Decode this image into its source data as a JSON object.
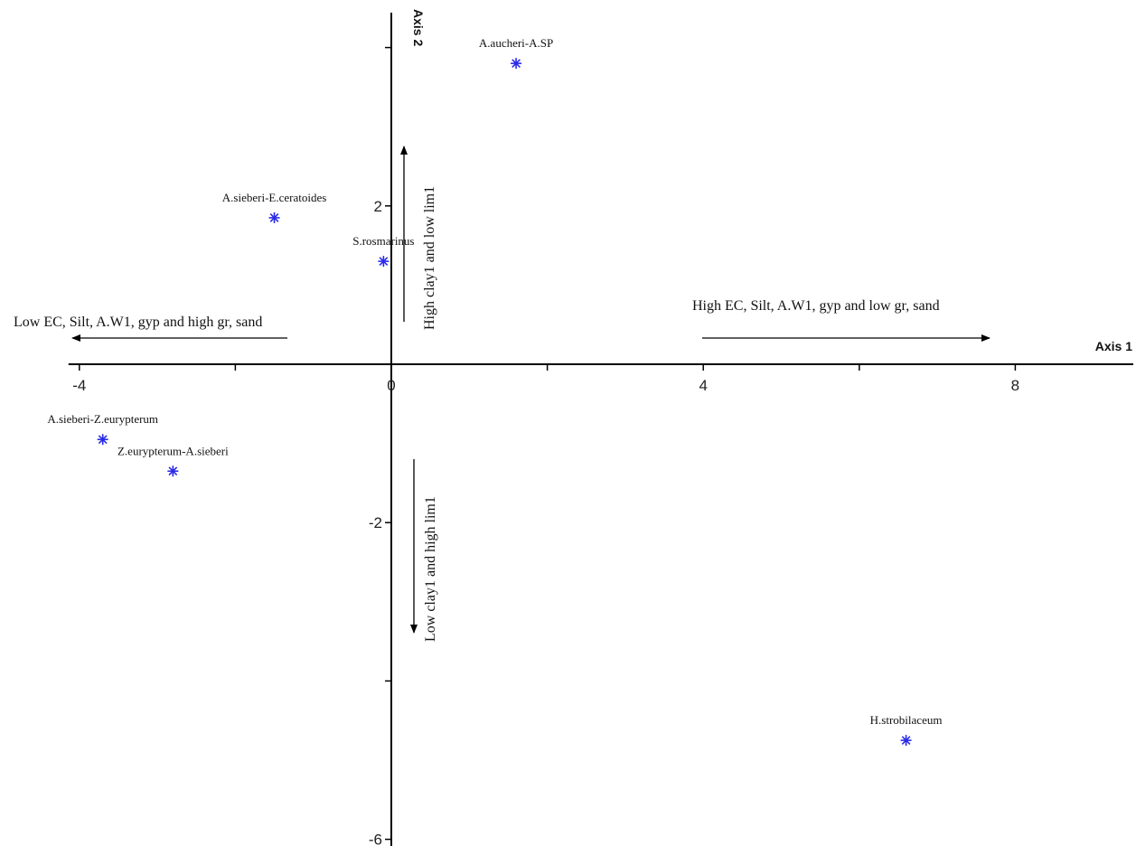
{
  "chart_data": {
    "type": "scatter",
    "title": "",
    "xlabel": "Axis 1",
    "ylabel": "Axis 2",
    "xlim": [
      -4,
      9.6
    ],
    "ylim": [
      -6,
      4.4
    ],
    "x_ticks": [
      -4,
      -2,
      0,
      2,
      4,
      6,
      8
    ],
    "x_tick_labels": [
      "-4",
      "",
      "0",
      "",
      "4",
      "",
      "8"
    ],
    "y_ticks": [
      -6,
      -4,
      -2,
      0,
      2,
      4
    ],
    "y_tick_labels": [
      "-6",
      "",
      "-2",
      "",
      "2",
      ""
    ],
    "grid": false,
    "marker_color": "#2a2ae8",
    "points": [
      {
        "label": "A.aucheri-A.SP",
        "x": 1.6,
        "y": 3.8
      },
      {
        "label": "A.sieberi-E.ceratoides",
        "x": -1.5,
        "y": 1.85
      },
      {
        "label": "S.rosmarinus",
        "x": -0.1,
        "y": 1.3
      },
      {
        "label": "A.sieberi-Z.eurypterum",
        "x": -3.7,
        "y": -0.95
      },
      {
        "label": "Z.eurypterum-A.sieberi",
        "x": -2.8,
        "y": -1.35
      },
      {
        "label": "H.strobilaceum",
        "x": 6.6,
        "y": -4.75
      }
    ],
    "annotations": [
      {
        "text": "Low EC, Silt, A.W1, gyp and high gr, sand",
        "direction": "left"
      },
      {
        "text": "High EC, Silt, A.W1, gyp and low gr, sand",
        "direction": "right"
      },
      {
        "text": "High clay1 and low lim1",
        "direction": "up"
      },
      {
        "text": "Low clay1 and high lim1",
        "direction": "down"
      }
    ]
  }
}
